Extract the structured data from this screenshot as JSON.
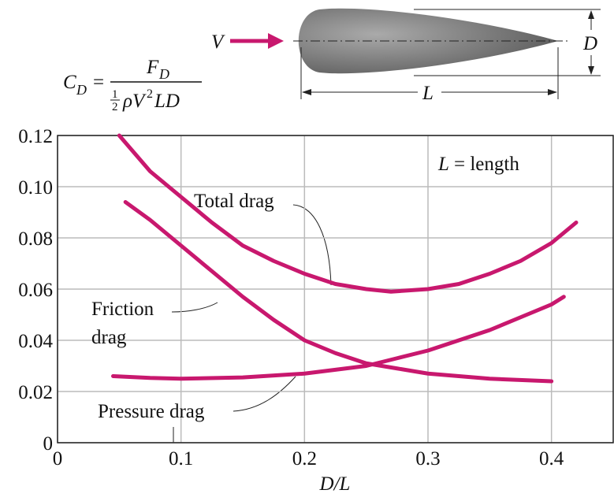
{
  "chart_data": {
    "type": "line",
    "x_label": "D/L",
    "length_note": {
      "symbol": "L",
      "text": "= length"
    },
    "formula": {
      "lhs": "C",
      "lhs_sub": "D",
      "eq": "=",
      "num": "F",
      "num_sub": "D",
      "half_num": "1",
      "half_den": "2",
      "den": "ρV",
      "den_sup": "2",
      "den_tail": "LD"
    },
    "diagram": {
      "velocity": "V",
      "thickness": "D",
      "length": "L"
    },
    "xlim": [
      0,
      0.45
    ],
    "xticks": [
      0,
      0.1,
      0.2,
      0.3,
      0.4
    ],
    "ylim": [
      0,
      0.12
    ],
    "yticks": [
      0,
      0.02,
      0.04,
      0.06,
      0.08,
      {
        "value": 0.1,
        "label": "0.10"
      },
      0.12
    ],
    "grid": true,
    "series": [
      {
        "name": "Total drag",
        "color": "#c8186e",
        "x": [
          0.05,
          0.075,
          0.1,
          0.125,
          0.15,
          0.175,
          0.2,
          0.225,
          0.25,
          0.27,
          0.3,
          0.325,
          0.35,
          0.375,
          0.4,
          0.42
        ],
        "values": [
          0.12,
          0.106,
          0.096,
          0.086,
          0.077,
          0.071,
          0.066,
          0.062,
          0.06,
          0.059,
          0.06,
          0.062,
          0.066,
          0.071,
          0.078,
          0.086
        ]
      },
      {
        "name": "Friction drag",
        "color": "#c8186e",
        "x": [
          0.055,
          0.075,
          0.1,
          0.125,
          0.15,
          0.175,
          0.2,
          0.225,
          0.25,
          0.275,
          0.3,
          0.35,
          0.4
        ],
        "values": [
          0.094,
          0.087,
          0.077,
          0.067,
          0.057,
          0.048,
          0.04,
          0.035,
          0.031,
          0.029,
          0.027,
          0.025,
          0.024
        ]
      },
      {
        "name": "Pressure drag",
        "color": "#c8186e",
        "x": [
          0.045,
          0.075,
          0.1,
          0.15,
          0.2,
          0.225,
          0.25,
          0.275,
          0.3,
          0.325,
          0.35,
          0.375,
          0.4,
          0.41
        ],
        "values": [
          0.026,
          0.0253,
          0.025,
          0.0255,
          0.027,
          0.0285,
          0.03,
          0.033,
          0.036,
          0.04,
          0.044,
          0.049,
          0.054,
          0.057
        ]
      }
    ]
  }
}
